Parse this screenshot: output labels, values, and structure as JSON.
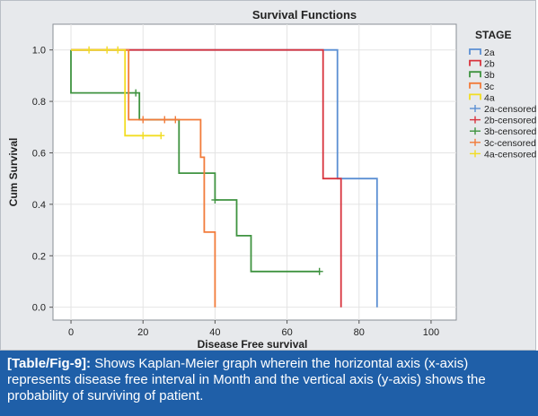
{
  "chart_data": {
    "type": "line",
    "subtype": "kaplan-meier-step",
    "title": "Survival Functions",
    "xlabel": "Disease Free survival",
    "ylabel": "Cum Survival",
    "xlim": [
      -5,
      107
    ],
    "ylim": [
      -0.05,
      1.1
    ],
    "xticks": [
      0,
      20,
      40,
      60,
      80,
      100
    ],
    "yticks": [
      0.0,
      0.2,
      0.4,
      0.6,
      0.8,
      1.0
    ],
    "ytick_labels": [
      "0.0",
      "0.2",
      "0.4",
      "0.6",
      "0.8",
      "1.0"
    ],
    "grid": true,
    "legend_title": "STAGE",
    "legend_position": "right",
    "series": [
      {
        "name": "2a",
        "color": "#5b8fd3",
        "x": [
          0,
          74,
          74,
          85,
          85
        ],
        "y": [
          1.0,
          1.0,
          0.5,
          0.5,
          0.0
        ],
        "censored": []
      },
      {
        "name": "2b",
        "color": "#d8343e",
        "x": [
          0,
          70,
          70,
          75,
          75
        ],
        "y": [
          1.0,
          1.0,
          0.5,
          0.5,
          0.0
        ],
        "censored": []
      },
      {
        "name": "3b",
        "color": "#3f9340",
        "x": [
          0,
          0,
          19,
          19,
          30,
          30,
          40,
          40,
          46,
          46,
          50,
          50,
          69
        ],
        "y": [
          1.0,
          0.833,
          0.833,
          0.729,
          0.729,
          0.521,
          0.521,
          0.417,
          0.417,
          0.278,
          0.278,
          0.139,
          0.139
        ],
        "censored": [
          [
            18,
            0.833
          ],
          [
            40,
            0.417
          ],
          [
            69,
            0.139
          ]
        ]
      },
      {
        "name": "3c",
        "color": "#f27b3a",
        "x": [
          0,
          16,
          16,
          20,
          20,
          36,
          36,
          37,
          37,
          40,
          40
        ],
        "y": [
          1.0,
          1.0,
          0.729,
          0.729,
          0.729,
          0.729,
          0.583,
          0.583,
          0.292,
          0.292,
          0.0
        ],
        "censored": [
          [
            20,
            0.729
          ],
          [
            26,
            0.729
          ],
          [
            29,
            0.729
          ]
        ]
      },
      {
        "name": "4a",
        "color": "#f2dd22",
        "x": [
          0,
          15,
          15,
          25
        ],
        "y": [
          1.0,
          1.0,
          0.667,
          0.667
        ],
        "censored": [
          [
            5,
            1.0
          ],
          [
            10,
            1.0
          ],
          [
            13,
            1.0
          ],
          [
            20,
            0.667
          ],
          [
            25,
            0.667
          ]
        ]
      }
    ],
    "legend_entries": [
      {
        "label": "2a",
        "marker": "step",
        "color": "#5b8fd3"
      },
      {
        "label": "2b",
        "marker": "step",
        "color": "#d8343e"
      },
      {
        "label": "3b",
        "marker": "step",
        "color": "#3f9340"
      },
      {
        "label": "3c",
        "marker": "step",
        "color": "#f27b3a"
      },
      {
        "label": "4a",
        "marker": "step",
        "color": "#f2dd22"
      },
      {
        "label": "2a-censored",
        "marker": "plus",
        "color": "#5b8fd3"
      },
      {
        "label": "2b-censored",
        "marker": "plus",
        "color": "#d8343e"
      },
      {
        "label": "3b-censored",
        "marker": "plus",
        "color": "#3f9340"
      },
      {
        "label": "3c-censored",
        "marker": "plus",
        "color": "#f27b3a"
      },
      {
        "label": "4a-censored",
        "marker": "plus",
        "color": "#f2dd22"
      }
    ]
  },
  "caption": {
    "label": "[Table/Fig-9]:",
    "text": " Shows Kaplan-Meier graph wherein the horizontal axis (x-axis) represents disease free interval in Month and the vertical axis (y-axis) shows the probability of surviving of patient."
  },
  "colors": {
    "caption_bg": "#1f5fa8",
    "chart_bg": "#e7e9ec",
    "plot_bg": "#ffffff",
    "grid": "#e4e4e4"
  }
}
